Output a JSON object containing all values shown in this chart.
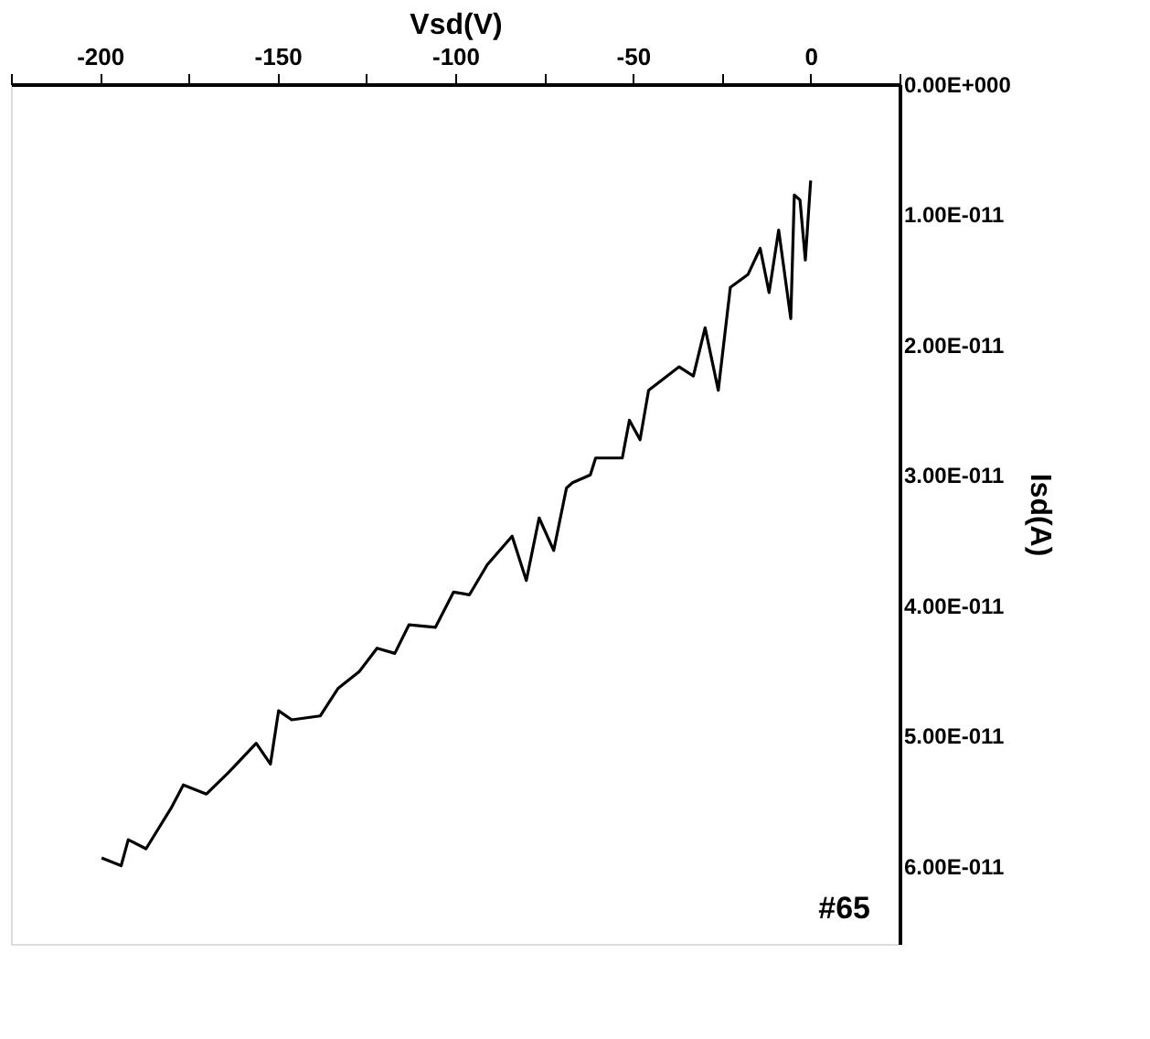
{
  "chart_data": {
    "type": "line",
    "xlabel": "Vsd(V)",
    "ylabel": "Isd(A)",
    "x": [
      -199.5,
      -194,
      -192,
      -187,
      -180,
      -176.5,
      -170,
      -164,
      -156,
      -152,
      -149.7,
      -146,
      -138,
      -133,
      -127,
      -122,
      -117,
      -113,
      -105.6,
      -100.5,
      -96,
      -91,
      -84,
      -80,
      -76.4,
      -72.3,
      -68.7,
      -67,
      -62,
      -60.5,
      -53,
      -51,
      -48,
      -45.6,
      -37,
      -33,
      -29.7,
      -26,
      -22.6,
      -17.6,
      -14.2,
      -11.7,
      -9,
      -5.6,
      -4.6,
      -3,
      -1.5,
      0
    ],
    "series": [
      {
        "color": "#000000",
        "values": [
          5.94e-11,
          6e-11,
          5.8e-11,
          5.87e-11,
          5.56e-11,
          5.38e-11,
          5.45e-11,
          5.29e-11,
          5.06e-11,
          5.22e-11,
          4.81e-11,
          4.88e-11,
          4.85e-11,
          4.64e-11,
          4.51e-11,
          4.33e-11,
          4.37e-11,
          4.15e-11,
          4.17e-11,
          3.9e-11,
          3.92e-11,
          3.69e-11,
          3.47e-11,
          3.81e-11,
          3.33e-11,
          3.58e-11,
          3.1e-11,
          3.06e-11,
          3e-11,
          2.87e-11,
          2.87e-11,
          2.58e-11,
          2.73e-11,
          2.35e-11,
          2.17e-11,
          2.24e-11,
          1.87e-11,
          2.35e-11,
          1.56e-11,
          1.46e-11,
          1.26e-11,
          1.6e-11,
          1.12e-11,
          1.8e-11,
          8.5e-12,
          8.9e-12,
          1.35e-11,
          7.4e-12
        ]
      }
    ],
    "xlim": [
      -225,
      25
    ],
    "xticks": [
      {
        "value": -225,
        "label": null
      },
      -200,
      {
        "value": -175,
        "label": null
      },
      -150,
      {
        "value": -125,
        "label": null
      },
      -100,
      {
        "value": -75,
        "label": null
      },
      -50,
      {
        "value": -25,
        "label": null
      },
      0,
      {
        "value": 25,
        "label": null
      }
    ],
    "ylim": [
      6.6e-11,
      0
    ],
    "yticks": [
      {
        "value": 0,
        "label": "0.00E+000"
      },
      {
        "value": 1e-11,
        "label": "1.00E-011"
      },
      {
        "value": 2e-11,
        "label": "2.00E-011"
      },
      {
        "value": 3e-11,
        "label": "3.00E-011"
      },
      {
        "value": 4e-11,
        "label": "4.00E-011"
      },
      {
        "value": 5e-11,
        "label": "5.00E-011"
      },
      {
        "value": 6e-11,
        "label": "6.00E-011"
      }
    ],
    "grid": false,
    "annotations": [
      "#65"
    ]
  }
}
